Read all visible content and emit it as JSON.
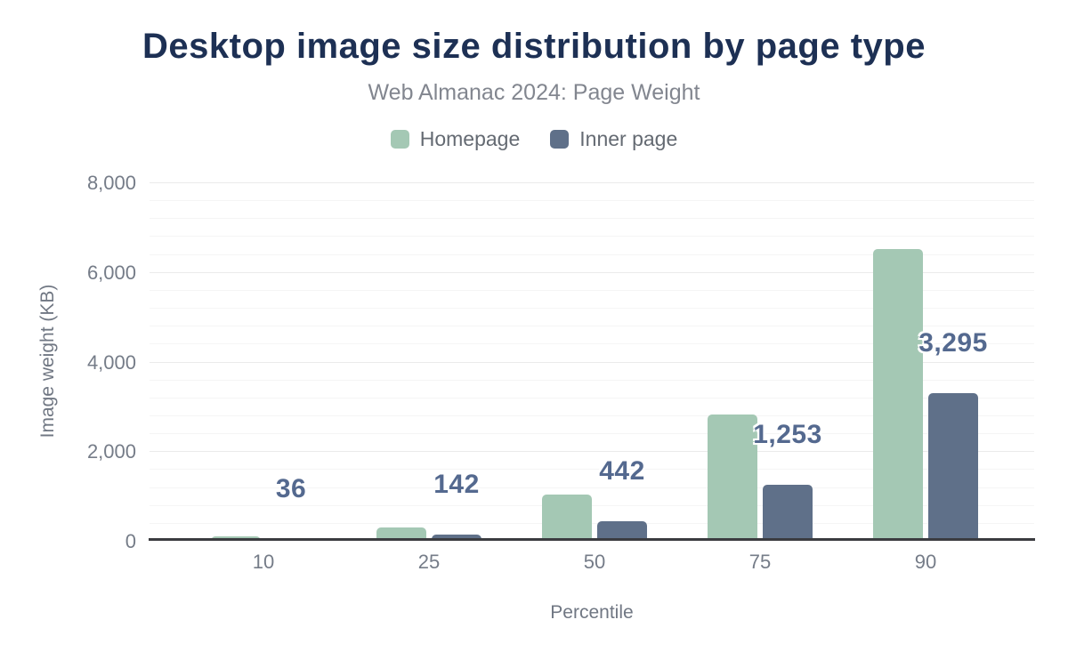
{
  "chart_data": {
    "type": "bar",
    "title": "Desktop image size distribution by page type",
    "subtitle": "Web Almanac 2024: Page Weight",
    "xlabel": "Percentile",
    "ylabel": "Image weight (KB)",
    "categories": [
      "10",
      "25",
      "50",
      "75",
      "90"
    ],
    "series": [
      {
        "name": "Homepage",
        "color": "#a4c8b4",
        "values": [
          95,
          305,
          1035,
          2815,
          6520
        ],
        "labels": null
      },
      {
        "name": "Inner page",
        "color": "#5f7089",
        "values": [
          36,
          142,
          442,
          1253,
          3295
        ],
        "labels": [
          "36",
          "142",
          "442",
          "1,253",
          "3,295"
        ]
      }
    ],
    "ylim": [
      0,
      8000
    ],
    "yticks": [
      {
        "value": 0,
        "label": "0"
      },
      {
        "value": 2000,
        "label": "2,000"
      },
      {
        "value": 4000,
        "label": "4,000"
      },
      {
        "value": 6000,
        "label": "6,000"
      },
      {
        "value": 8000,
        "label": "8,000"
      }
    ],
    "minor_tick_interval": 400,
    "grid": true,
    "legend_position": "top",
    "colors": {
      "title": "#1d3054",
      "subtitle": "#82868f",
      "axis_text": "#757c88",
      "data_label": "#54698f",
      "axis_line": "#3b3c40",
      "gridline_major": "#ebebeb",
      "gridline_minor": "#f5f5f5",
      "background": "#ffffff"
    }
  }
}
